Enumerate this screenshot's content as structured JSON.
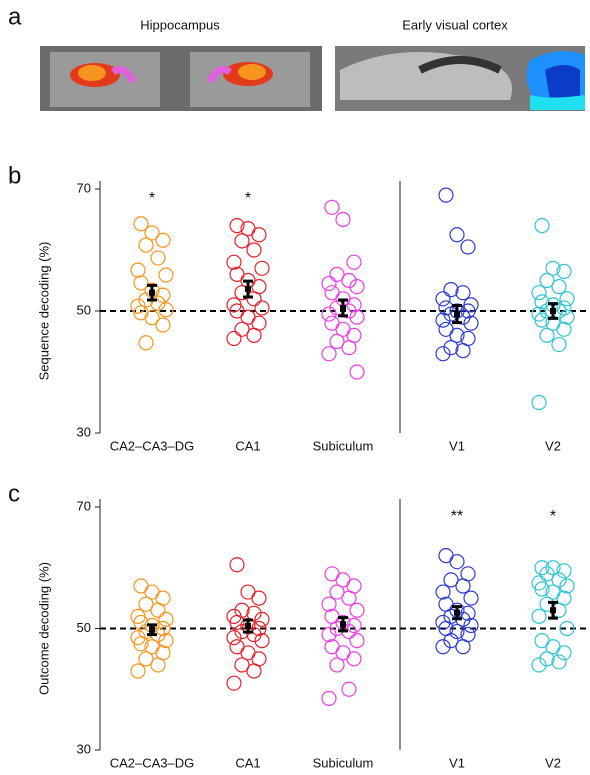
{
  "panel_a": {
    "label": "a",
    "images": [
      {
        "title": "Hippocampus"
      },
      {
        "title": "Early visual cortex"
      }
    ]
  },
  "chart_data": [
    {
      "type": "strip",
      "panel_label": "b",
      "y_label": "Sequence decoding (%)",
      "categories": [
        "CA2–CA3–DG",
        "CA1",
        "Subiculum",
        "V1",
        "V2"
      ],
      "ylim": [
        30,
        70
      ],
      "yticks": [
        30,
        50,
        70
      ],
      "reference": 50,
      "groups": [
        {
          "color": "#f7941d",
          "values": [
            64.3,
            62.8,
            61.6,
            60.8,
            58.7,
            56.7,
            55.9,
            54.6,
            53.4,
            52.6,
            51.8,
            51.3,
            50.8,
            50.2,
            49.7,
            48.9,
            47.7,
            44.8
          ],
          "mean": 53,
          "error": 1.2,
          "significance": "*"
        },
        {
          "color": "#e8202a",
          "values": [
            64,
            63.5,
            62.5,
            61.5,
            60,
            58,
            57,
            56,
            55,
            54,
            53,
            52,
            51,
            50.5,
            50,
            49,
            48,
            47,
            46,
            45.5
          ],
          "mean": 53.6,
          "error": 1.3,
          "significance": "*"
        },
        {
          "color": "#ec3de8",
          "values": [
            67,
            65,
            58,
            56,
            55,
            54.5,
            54,
            53,
            52,
            51,
            50.5,
            50,
            49.5,
            49,
            48,
            47,
            46,
            45,
            44,
            43,
            40
          ],
          "mean": 50.5,
          "error": 1.3,
          "significance": null
        },
        {
          "color": "#2e3bd6",
          "values": [
            69,
            62.5,
            60.5,
            53.5,
            53,
            52,
            51,
            50.5,
            50,
            50,
            49.5,
            49,
            48.5,
            48,
            47,
            46,
            45.5,
            44,
            43.5,
            43
          ],
          "mean": 49.5,
          "error": 1.4,
          "significance": null
        },
        {
          "color": "#2ec4d6",
          "values": [
            64,
            57,
            56.5,
            55,
            54,
            53,
            52,
            51.5,
            51,
            50.5,
            50,
            50,
            49.5,
            49,
            48.5,
            48,
            47,
            46,
            44.5,
            35
          ],
          "mean": 50,
          "error": 1.2,
          "significance": null
        }
      ]
    },
    {
      "type": "strip",
      "panel_label": "c",
      "y_label": "Outcome decoding (%)",
      "categories": [
        "CA2–CA3–DG",
        "CA1",
        "Subiculum",
        "V1",
        "V2"
      ],
      "ylim": [
        30,
        70
      ],
      "yticks": [
        30,
        50,
        70
      ],
      "reference": 50,
      "groups": [
        {
          "color": "#f7941d",
          "values": [
            57,
            56,
            55,
            54,
            53,
            52,
            51.5,
            51,
            50.5,
            50,
            49.5,
            49,
            48.5,
            48,
            47.5,
            47,
            46,
            45,
            44,
            43
          ],
          "mean": 49.8,
          "error": 0.8,
          "significance": null
        },
        {
          "color": "#e8202a",
          "values": [
            60.5,
            56,
            55,
            53,
            52.5,
            52,
            51.5,
            51,
            50.5,
            50,
            49.5,
            49,
            48.5,
            48,
            47,
            46,
            45,
            44,
            43,
            41
          ],
          "mean": 50.4,
          "error": 1.0,
          "significance": null
        },
        {
          "color": "#ec3de8",
          "values": [
            59,
            58,
            57,
            56,
            55,
            54,
            53,
            52,
            51,
            50.5,
            50,
            49.5,
            49,
            48,
            47,
            46,
            45,
            44,
            40,
            38.5
          ],
          "mean": 50.7,
          "error": 1.1,
          "significance": null
        },
        {
          "color": "#2e3bd6",
          "values": [
            62,
            61,
            59,
            58,
            57,
            56,
            55,
            54,
            53,
            52.5,
            52,
            51.5,
            51,
            50.5,
            50,
            49.5,
            49,
            48,
            47,
            47
          ],
          "mean": 52.6,
          "error": 1.0,
          "significance": "**"
        },
        {
          "color": "#2ec4d6",
          "values": [
            60,
            60,
            59.5,
            59,
            58,
            57.5,
            57,
            56.5,
            56,
            55,
            54,
            53,
            52,
            50,
            48,
            47,
            46,
            45,
            44.5,
            44
          ],
          "mean": 53,
          "error": 1.3,
          "significance": "*"
        }
      ]
    }
  ]
}
